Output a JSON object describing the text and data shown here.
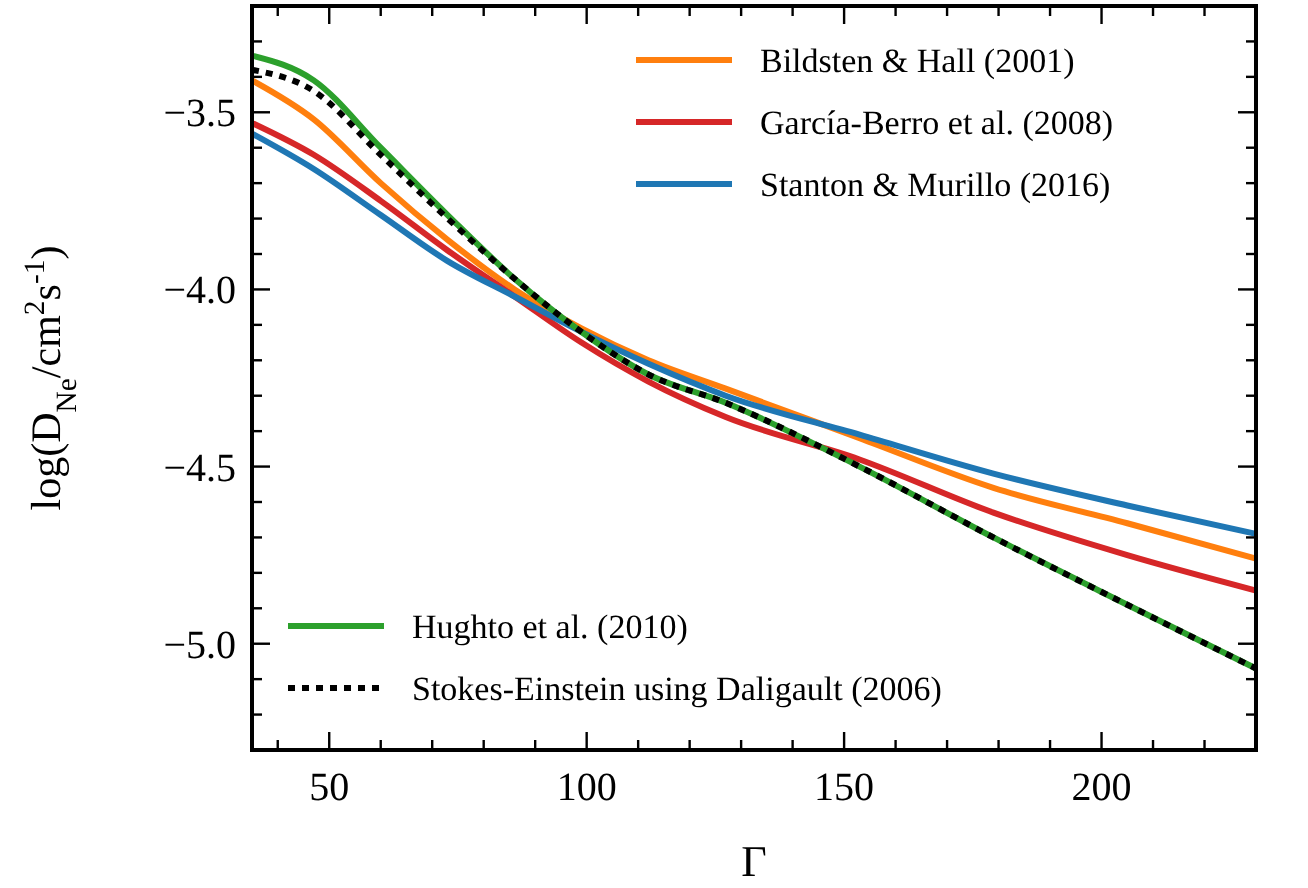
{
  "chart_data": {
    "type": "line",
    "xlabel": "Γ",
    "ylabel": "log(D$_{Ne}$/cm$^{2}$s$^{-1}$)",
    "x": [
      35,
      47,
      60,
      73,
      86,
      99,
      112,
      127,
      153,
      179,
      205,
      230
    ],
    "xlim": [
      35,
      230
    ],
    "xticks": [
      {
        "value": 40,
        "label": null
      },
      50,
      {
        "value": 60,
        "label": null
      },
      {
        "value": 70,
        "label": null
      },
      {
        "value": 80,
        "label": null
      },
      {
        "value": 90,
        "label": null
      },
      100,
      {
        "value": 110,
        "label": null
      },
      {
        "value": 120,
        "label": null
      },
      {
        "value": 130,
        "label": null
      },
      {
        "value": 140,
        "label": null
      },
      150,
      {
        "value": 160,
        "label": null
      },
      {
        "value": 170,
        "label": null
      },
      {
        "value": 180,
        "label": null
      },
      {
        "value": 190,
        "label": null
      },
      200,
      {
        "value": 210,
        "label": null
      },
      {
        "value": 220,
        "label": null
      }
    ],
    "ylim": [
      -5.3,
      -3.2
    ],
    "yticks": [
      {
        "value": -3.3,
        "label": null
      },
      {
        "value": -3.4,
        "label": null
      },
      {
        "value": -3.5,
        "label": "−3.5"
      },
      {
        "value": -3.6,
        "label": null
      },
      {
        "value": -3.7,
        "label": null
      },
      {
        "value": -3.8,
        "label": null
      },
      {
        "value": -3.9,
        "label": null
      },
      {
        "value": -4.0,
        "label": "−4.0"
      },
      {
        "value": -4.1,
        "label": null
      },
      {
        "value": -4.2,
        "label": null
      },
      {
        "value": -4.3,
        "label": null
      },
      {
        "value": -4.4,
        "label": null
      },
      {
        "value": -4.5,
        "label": "−4.5"
      },
      {
        "value": -4.6,
        "label": null
      },
      {
        "value": -4.7,
        "label": null
      },
      {
        "value": -4.8,
        "label": null
      },
      {
        "value": -4.9,
        "label": null
      },
      {
        "value": -5.0,
        "label": "−5.0"
      },
      {
        "value": -5.1,
        "label": null
      },
      {
        "value": -5.2,
        "label": null
      }
    ],
    "grid": false,
    "legend": [
      "top right",
      "top right",
      "top right",
      "bottom left",
      "bottom left"
    ],
    "marker": "none",
    "line_style": "solid",
    "series": [
      {
        "name": "Bildsten & Hall (2001)",
        "color": "#ff7f0e",
        "values": [
          -3.41,
          -3.52,
          -3.7,
          -3.86,
          -4.0,
          -4.11,
          -4.2,
          -4.28,
          -4.42,
          -4.56,
          -4.66,
          -4.76
        ]
      },
      {
        "name": "García-Berro et al. (2008)",
        "color": "#d62728",
        "values": [
          -3.53,
          -3.62,
          -3.75,
          -3.89,
          -4.02,
          -4.15,
          -4.26,
          -4.36,
          -4.48,
          -4.63,
          -4.75,
          -4.85
        ]
      },
      {
        "name": "Stanton & Murillo (2016)",
        "color": "#1f77b4",
        "values": [
          -3.56,
          -3.66,
          -3.79,
          -3.92,
          -4.02,
          -4.12,
          -4.21,
          -4.3,
          -4.41,
          -4.52,
          -4.61,
          -4.69
        ]
      },
      {
        "name": "Hughto et al. (2010)",
        "color": "#2ca02c",
        "values": [
          -3.34,
          -3.41,
          -3.6,
          -3.79,
          -3.97,
          -4.12,
          -4.24,
          -4.32,
          -4.5,
          -4.7,
          -4.89,
          -5.07
        ]
      },
      {
        "name": "Stokes-Einstein using Daligault (2006)",
        "color": "#000000",
        "line_style": "dotted",
        "values": [
          -3.38,
          -3.44,
          -3.62,
          -3.8,
          -3.97,
          -4.12,
          -4.24,
          -4.32,
          -4.5,
          -4.7,
          -4.89,
          -5.07
        ]
      }
    ]
  }
}
